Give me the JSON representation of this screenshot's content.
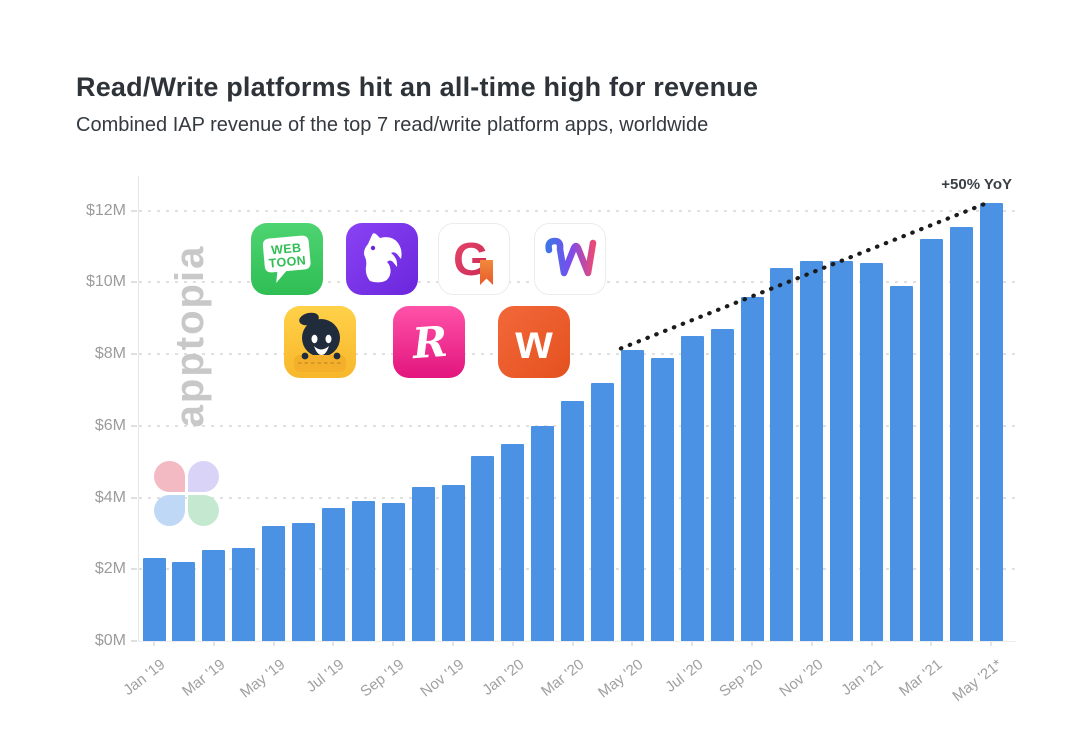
{
  "header": {
    "title": "Read/Write platforms hit an all-time high for revenue",
    "subtitle": "Combined IAP revenue of the top 7 read/write platform apps, worldwide"
  },
  "watermark": {
    "text": "apptopia"
  },
  "chart_data": {
    "type": "bar",
    "title": "Read/Write platforms hit an all-time high for revenue",
    "xlabel": "",
    "ylabel": "",
    "x": [
      "Jan '19",
      "Feb '19",
      "Mar '19",
      "Apr '19",
      "May '19",
      "Jun '19",
      "Jul '19",
      "Aug '19",
      "Sep '19",
      "Oct '19",
      "Nov '19",
      "Dec '19",
      "Jan '20",
      "Feb '20",
      "Mar '20",
      "Apr '20",
      "May '20",
      "Jun '20",
      "Jul '20",
      "Aug '20",
      "Sep '20",
      "Oct '20",
      "Nov '20",
      "Dec '20",
      "Jan '21",
      "Feb '21",
      "Mar '21",
      "Apr '21",
      "May '21*"
    ],
    "values": [
      2.3,
      2.2,
      2.55,
      2.6,
      3.2,
      3.3,
      3.7,
      3.9,
      3.85,
      4.3,
      4.35,
      5.15,
      5.5,
      6.0,
      6.7,
      7.2,
      8.1,
      7.9,
      8.5,
      8.7,
      9.6,
      10.4,
      10.6,
      10.6,
      10.55,
      9.9,
      11.2,
      11.55,
      12.2
    ],
    "values_unit": "$M",
    "x_tick_labels": [
      "Jan '19",
      "Mar '19",
      "May '19",
      "Jul '19",
      "Sep '19",
      "Nov '19",
      "Jan '20",
      "Mar '20",
      "May '20",
      "Jul '20",
      "Sep '20",
      "Nov '20",
      "Jan '21",
      "Mar '21",
      "May '21*"
    ],
    "y_ticks": [
      "$0M",
      "$2M",
      "$4M",
      "$6M",
      "$8M",
      "$10M",
      "$12M"
    ],
    "y_tick_values": [
      0,
      2,
      4,
      6,
      8,
      10,
      12
    ],
    "ylim": [
      0,
      12.5
    ],
    "grid": "dashed horizontal",
    "bar_color": "#4B91E4",
    "trend": {
      "label": "+50% YoY",
      "style": "dotted",
      "color": "#1b1b1b",
      "from_month": "May '20",
      "from_value": 8.1,
      "to_month": "May '21*",
      "to_value": 12.2
    }
  },
  "app_icons": [
    {
      "id": "webtoon",
      "line1": "WEB",
      "line2": "TOON",
      "bg": "#3FCB63"
    },
    {
      "id": "dreame",
      "bg": "#7A35E8"
    },
    {
      "id": "goodnovel",
      "letter": "G",
      "bg": "#FFFFFF"
    },
    {
      "id": "webnovel",
      "bg": "#FFFFFF"
    },
    {
      "id": "webcomics",
      "bg": "#FFC83D"
    },
    {
      "id": "radish",
      "letter": "R",
      "bg": "#EF2C92"
    },
    {
      "id": "wattpad",
      "letter": "w",
      "bg": "#EE5B2D"
    }
  ]
}
